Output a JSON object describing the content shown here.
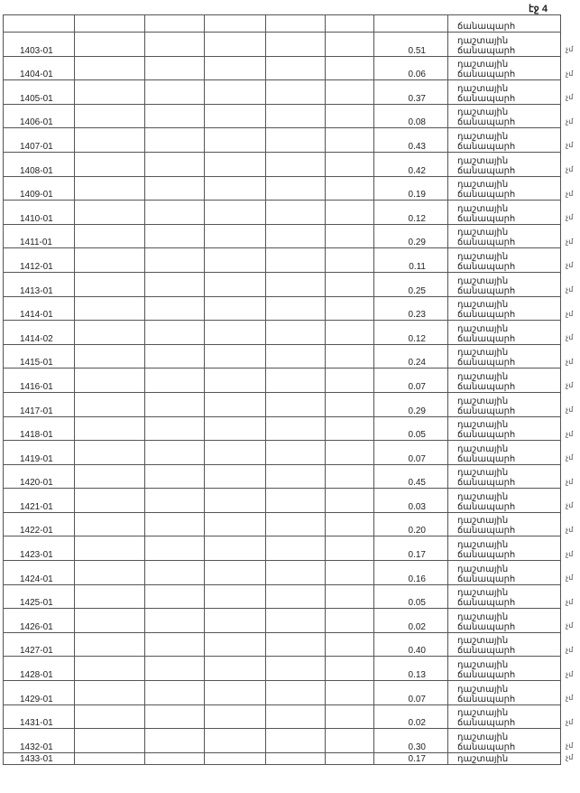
{
  "page_label": "էջ 4",
  "top_row_text": "ճանապարհ",
  "type_line1": "դաշտային",
  "type_line2": "ճանապարհ",
  "side_mark": "չմ",
  "rows": [
    {
      "code": "1403-01",
      "area": "0.51"
    },
    {
      "code": "1404-01",
      "area": "0.06"
    },
    {
      "code": "1405-01",
      "area": "0.37"
    },
    {
      "code": "1406-01",
      "area": "0.08"
    },
    {
      "code": "1407-01",
      "area": "0.43"
    },
    {
      "code": "1408-01",
      "area": "0.42"
    },
    {
      "code": "1409-01",
      "area": "0.19"
    },
    {
      "code": "1410-01",
      "area": "0.12"
    },
    {
      "code": "1411-01",
      "area": "0.29"
    },
    {
      "code": "1412-01",
      "area": "0.11"
    },
    {
      "code": "1413-01",
      "area": "0.25"
    },
    {
      "code": "1414-01",
      "area": "0.23"
    },
    {
      "code": "1414-02",
      "area": "0.12"
    },
    {
      "code": "1415-01",
      "area": "0.24"
    },
    {
      "code": "1416-01",
      "area": "0.07"
    },
    {
      "code": "1417-01",
      "area": "0.29"
    },
    {
      "code": "1418-01",
      "area": "0.05"
    },
    {
      "code": "1419-01",
      "area": "0.07"
    },
    {
      "code": "1420-01",
      "area": "0.45"
    },
    {
      "code": "1421-01",
      "area": "0.03"
    },
    {
      "code": "1422-01",
      "area": "0.20"
    },
    {
      "code": "1423-01",
      "area": "0.17"
    },
    {
      "code": "1424-01",
      "area": "0.16"
    },
    {
      "code": "1425-01",
      "area": "0.05"
    },
    {
      "code": "1426-01",
      "area": "0.02"
    },
    {
      "code": "1427-01",
      "area": "0.40"
    },
    {
      "code": "1428-01",
      "area": "0.13"
    },
    {
      "code": "1429-01",
      "area": "0.07"
    },
    {
      "code": "1431-01",
      "area": "0.02"
    },
    {
      "code": "1432-01",
      "area": "0.30"
    }
  ],
  "last_row": {
    "code": "1433-01",
    "area": "0.17",
    "type": "դաշտային"
  }
}
